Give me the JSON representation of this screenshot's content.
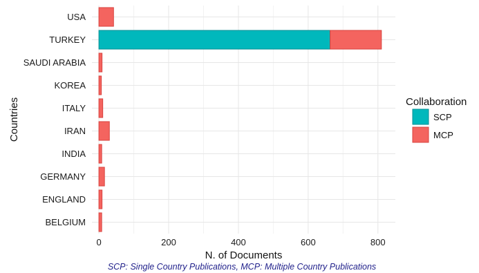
{
  "chart_data": {
    "type": "bar",
    "orientation": "horizontal",
    "stacked": true,
    "categories": [
      "USA",
      "TURKEY",
      "SAUDI ARABIA",
      "KOREA",
      "ITALY",
      "IRAN",
      "INDIA",
      "GERMANY",
      "ENGLAND",
      "BELGIUM"
    ],
    "series": [
      {
        "name": "SCP",
        "color": "#00b8bc",
        "values": [
          0,
          663,
          0,
          0,
          0,
          0,
          0,
          0,
          0,
          0
        ]
      },
      {
        "name": "MCP",
        "color": "#f4645f",
        "values": [
          42,
          147,
          9,
          7,
          11,
          30,
          8,
          16,
          9,
          8
        ]
      }
    ],
    "xlabel": "N. of Documents",
    "ylabel": "Countries",
    "xlim": [
      -20,
      850
    ],
    "xticks": [
      0,
      200,
      400,
      600,
      800
    ],
    "grid": true,
    "legend": {
      "title": "Collaboration",
      "position": "right"
    },
    "caption": "SCP: Single Country Publications, MCP: Multiple Country Publications"
  }
}
